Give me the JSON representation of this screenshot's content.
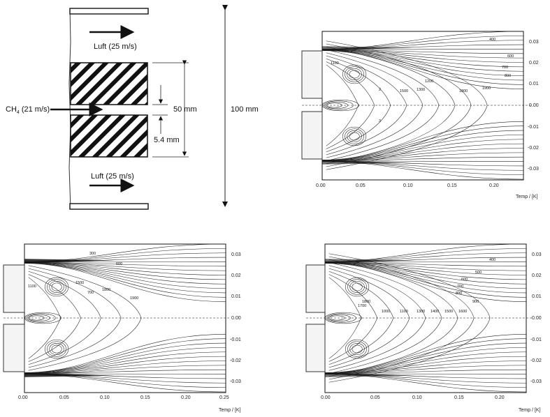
{
  "schematic": {
    "air_top": "Luft (25 m/s)",
    "air_bottom": "Luft (25 m/s)",
    "fuel_prefix": "CH",
    "fuel_sub": "4",
    "fuel_suffix": " (21 m/s)",
    "dim_gap": "50 mm",
    "dim_slot": "5.4 mm",
    "dim_channel": "100 mm"
  },
  "plots": [
    {
      "x_label": "Temp / [K]",
      "x_ticks": [
        "0.00",
        "0.05",
        "0.10",
        "0.15",
        "0.20"
      ],
      "y_ticks": [
        "0.03",
        "0.02",
        "0.01",
        "0.00",
        "-0.01",
        "-0.02",
        "-0.03"
      ],
      "contour_labels": [
        "400",
        "600",
        "700",
        "800",
        "1100",
        "1200",
        "1300",
        "1500",
        "1800",
        "1900",
        "2",
        "3"
      ]
    },
    {
      "x_label": "Temp / [K]",
      "x_ticks": [
        "0.00",
        "0.05",
        "0.10",
        "0.15",
        "0.20",
        "0.25"
      ],
      "y_ticks": [
        "0.03",
        "0.02",
        "0.01",
        "0.00",
        "-0.01",
        "-0.02",
        "-0.03"
      ],
      "contour_labels": [
        "300",
        "600",
        "1100",
        "1500",
        "700",
        "1800",
        "1900"
      ]
    },
    {
      "x_label": "Temp / [K]",
      "x_ticks": [
        "0.00",
        "0.05",
        "0.10",
        "0.15",
        "0.20"
      ],
      "y_ticks": [
        "0.03",
        "0.02",
        "0.01",
        "0.00",
        "-0.01",
        "-0.02",
        "-0.03"
      ],
      "contour_labels": [
        "400",
        "500",
        "600",
        "700",
        "800",
        "900",
        "1000",
        "1100",
        "1300",
        "1400",
        "1500",
        "1600",
        "1700",
        "1800"
      ]
    }
  ]
}
